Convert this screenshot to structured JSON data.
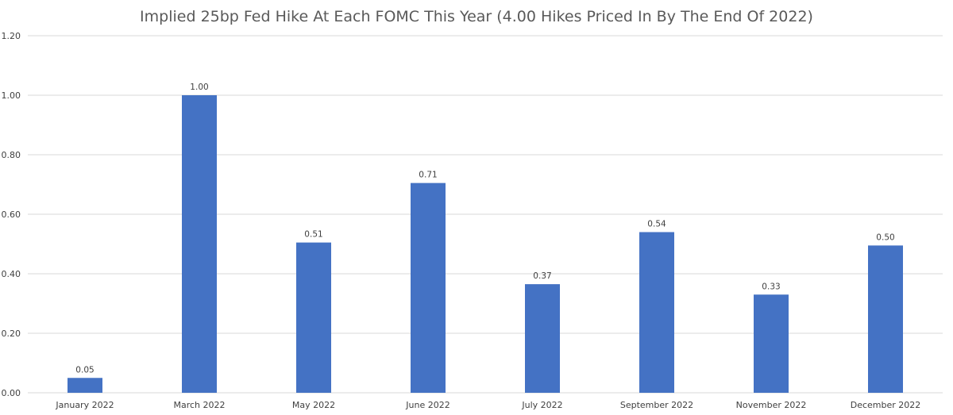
{
  "chart_data": {
    "type": "bar",
    "title": "Implied 25bp Fed Hike At Each FOMC This Year (4.00 Hikes Priced In By The End Of 2022)",
    "categories": [
      "January 2022",
      "March 2022",
      "May 2022",
      "June 2022",
      "July 2022",
      "September 2022",
      "November 2022",
      "December 2022"
    ],
    "values": [
      0.05,
      1.0,
      0.505,
      0.705,
      0.365,
      0.54,
      0.33,
      0.495
    ],
    "data_labels": [
      "0.05",
      "1.00",
      "0.51",
      "0.71",
      "0.37",
      "0.54",
      "0.33",
      "0.50"
    ],
    "yticks": [
      "0.00",
      "0.20",
      "0.40",
      "0.60",
      "0.80",
      "1.00",
      "1.20"
    ],
    "ylim": [
      0,
      1.2
    ],
    "grid": true,
    "legend": "none",
    "bar_color": "#4472c4"
  }
}
